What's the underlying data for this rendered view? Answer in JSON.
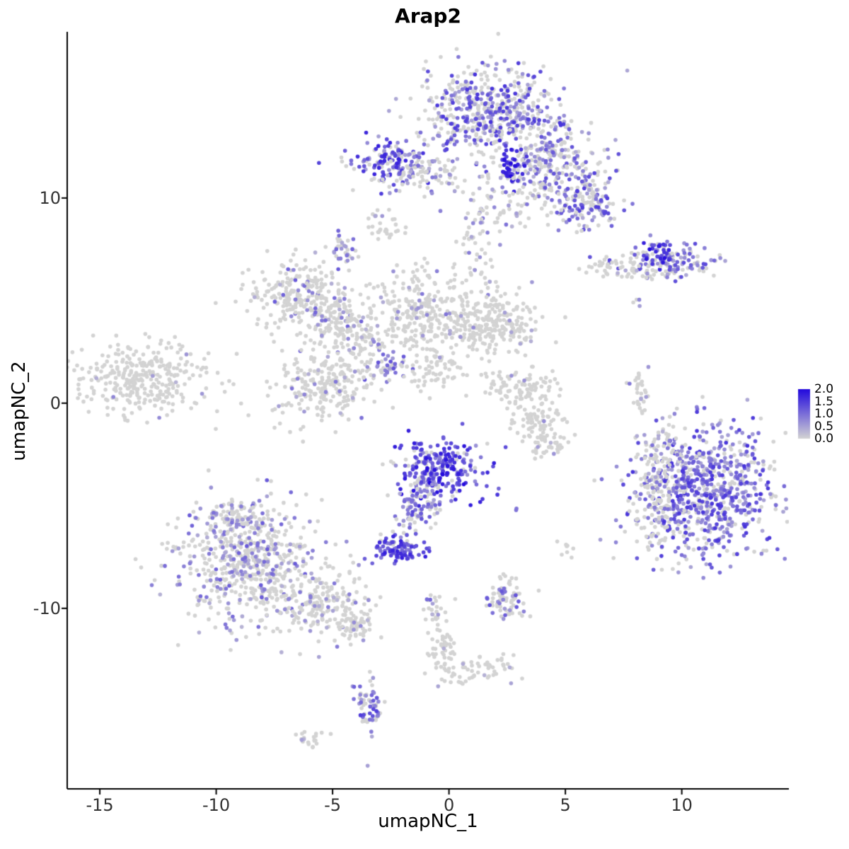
{
  "chart_data": {
    "type": "scatter",
    "title": "Arap2",
    "xlabel": "umapNC_1",
    "ylabel": "umapNC_2",
    "xlim": [
      -16.4,
      14.6
    ],
    "ylim": [
      -18.8,
      18.1
    ],
    "x_ticks": [
      {
        "value": -15,
        "label": "-15"
      },
      {
        "value": -10,
        "label": "-10"
      },
      {
        "value": -5,
        "label": "-5"
      },
      {
        "value": 0,
        "label": "0"
      },
      {
        "value": 5,
        "label": "5"
      },
      {
        "value": 10,
        "label": "10"
      }
    ],
    "y_ticks": [
      {
        "value": 10,
        "label": "10"
      },
      {
        "value": 0,
        "label": "0"
      },
      {
        "value": -10,
        "label": "-10"
      }
    ],
    "legend": {
      "labels": [
        "2.0",
        "1.5",
        "1.0",
        "0.5",
        "0.0"
      ],
      "max_value": 2.0,
      "low_color": "#D3D3D3",
      "high_color": "#2209DD"
    },
    "point_radius": 2.8,
    "seed": 42,
    "grid": false,
    "colors": {
      "background": "#FFFFFF",
      "axis": "#000000",
      "tick_text": "#333333",
      "grey_point": "#D3D3D3",
      "high_point": "#2209DD"
    },
    "clusters": [
      {
        "name": "top-main",
        "x": 1.8,
        "y": 14.2,
        "sx": 1.5,
        "sy": 1.1,
        "n": 520,
        "frac": 0.5,
        "imin": 0.4,
        "imax": 1.6
      },
      {
        "name": "top-arm",
        "x": 4.3,
        "y": 11.9,
        "sx": 1.3,
        "sy": 0.9,
        "n": 230,
        "frac": 0.45,
        "imin": 0.3,
        "imax": 1.3
      },
      {
        "name": "top-right-blob",
        "x": 5.9,
        "y": 9.7,
        "sx": 0.75,
        "sy": 0.65,
        "n": 150,
        "frac": 0.55,
        "imin": 0.4,
        "imax": 1.5
      },
      {
        "name": "top-left-sub",
        "x": -2.6,
        "y": 11.7,
        "sx": 0.85,
        "sy": 0.6,
        "n": 150,
        "frac": 0.7,
        "imin": 0.5,
        "imax": 1.8
      },
      {
        "name": "top-deep-blue",
        "x": 2.7,
        "y": 11.6,
        "sx": 0.25,
        "sy": 0.45,
        "n": 45,
        "frac": 0.95,
        "imin": 1.4,
        "imax": 2.0
      },
      {
        "name": "top-bridge-left",
        "x": -0.9,
        "y": 11.1,
        "sx": 0.8,
        "sy": 0.5,
        "n": 70,
        "frac": 0.35,
        "imin": 0.3,
        "imax": 1.0
      },
      {
        "name": "top-under-sparse",
        "x": 3.2,
        "y": 10.1,
        "sx": 1.2,
        "sy": 0.8,
        "n": 90,
        "frac": 0.3,
        "imin": 0.3,
        "imax": 1.0
      },
      {
        "name": "bridge-top",
        "x": 1.3,
        "y": 7.3,
        "sx": 0.5,
        "sy": 1.5,
        "n": 70,
        "frac": 0.15,
        "imin": 0.3,
        "imax": 0.9
      },
      {
        "name": "right-upper",
        "x": 9.4,
        "y": 6.9,
        "sx": 1.1,
        "sy": 0.45,
        "n": 140,
        "frac": 0.5,
        "imin": 0.4,
        "imax": 1.4
      },
      {
        "name": "right-upper-blue",
        "x": 9.0,
        "y": 7.3,
        "sx": 0.3,
        "sy": 0.3,
        "n": 30,
        "frac": 0.9,
        "imin": 1.2,
        "imax": 2.0
      },
      {
        "name": "right-upper-tail",
        "x": 7.3,
        "y": 6.6,
        "sx": 0.8,
        "sy": 0.3,
        "n": 45,
        "frac": 0.1,
        "imin": 0.3,
        "imax": 0.8
      },
      {
        "name": "right-upper-dot",
        "x": 8.1,
        "y": 4.9,
        "sx": 0.15,
        "sy": 0.15,
        "n": 4,
        "frac": 0.5,
        "imin": 0.5,
        "imax": 1.0
      },
      {
        "name": "web-northwest",
        "x": -6.6,
        "y": 5.3,
        "sx": 1.1,
        "sy": 0.85,
        "n": 230,
        "frac": 0.1,
        "imin": 0.3,
        "imax": 1.2
      },
      {
        "name": "web-northwest-2",
        "x": -4.9,
        "y": 4.2,
        "sx": 0.7,
        "sy": 0.7,
        "n": 120,
        "frac": 0.15,
        "imin": 0.3,
        "imax": 1.2
      },
      {
        "name": "web-top-spur",
        "x": -4.5,
        "y": 7.4,
        "sx": 0.3,
        "sy": 0.4,
        "n": 35,
        "frac": 0.5,
        "imin": 0.4,
        "imax": 1.2
      },
      {
        "name": "web-top-spur-2",
        "x": -2.8,
        "y": 8.7,
        "sx": 0.35,
        "sy": 0.5,
        "n": 30,
        "frac": 0.1,
        "imin": 0.3,
        "imax": 0.6
      },
      {
        "name": "web-center",
        "x": -1.3,
        "y": 4.4,
        "sx": 1.0,
        "sy": 1.0,
        "n": 260,
        "frac": 0.07,
        "imin": 0.3,
        "imax": 1.0
      },
      {
        "name": "web-right",
        "x": 1.8,
        "y": 3.9,
        "sx": 1.1,
        "sy": 0.75,
        "n": 240,
        "frac": 0.04,
        "imin": 0.3,
        "imax": 0.8
      },
      {
        "name": "web-lower",
        "x": -5.3,
        "y": 0.9,
        "sx": 1.0,
        "sy": 1.0,
        "n": 230,
        "frac": 0.08,
        "imin": 0.3,
        "imax": 1.0
      },
      {
        "name": "web-streak",
        "x": -2.6,
        "y": 1.9,
        "sx": 0.45,
        "sy": 0.45,
        "n": 40,
        "frac": 0.6,
        "imin": 0.4,
        "imax": 1.3
      },
      {
        "name": "web-bridge",
        "x": -0.5,
        "y": 1.5,
        "sx": 0.8,
        "sy": 0.6,
        "n": 70,
        "frac": 0.05,
        "imin": 0.3,
        "imax": 0.6
      },
      {
        "name": "web-connector",
        "x": -3.8,
        "y": 3.0,
        "sx": 0.6,
        "sy": 0.8,
        "n": 80,
        "frac": 0.1,
        "imin": 0.3,
        "imax": 0.9
      },
      {
        "name": "far-left",
        "x": -13.1,
        "y": 1.2,
        "sx": 1.5,
        "sy": 0.85,
        "n": 330,
        "frac": 0.02,
        "imin": 0.3,
        "imax": 0.9
      },
      {
        "name": "mid-right-tiny",
        "x": 8.2,
        "y": 0.4,
        "sx": 0.2,
        "sy": 0.55,
        "n": 30,
        "frac": 0.12,
        "imin": 0.4,
        "imax": 1.0
      },
      {
        "name": "crescent-top",
        "x": 3.1,
        "y": 0.8,
        "sx": 0.85,
        "sy": 0.45,
        "n": 90,
        "frac": 0.03,
        "imin": 0.3,
        "imax": 0.7
      },
      {
        "name": "crescent-bottom",
        "x": 3.9,
        "y": -0.8,
        "sx": 0.55,
        "sy": 0.6,
        "n": 85,
        "frac": 0.03,
        "imin": 0.3,
        "imax": 0.7
      },
      {
        "name": "crescent-tail",
        "x": 4.3,
        "y": -2.2,
        "sx": 0.4,
        "sy": 0.5,
        "n": 35,
        "frac": 0.05,
        "imin": 0.3,
        "imax": 0.7
      },
      {
        "name": "center-purple",
        "x": -0.4,
        "y": -3.2,
        "sx": 0.95,
        "sy": 0.75,
        "n": 260,
        "frac": 0.8,
        "imin": 0.6,
        "imax": 2.0
      },
      {
        "name": "center-purple-tail",
        "x": -1.3,
        "y": -4.9,
        "sx": 0.5,
        "sy": 0.6,
        "n": 70,
        "frac": 0.6,
        "imin": 0.4,
        "imax": 1.5
      },
      {
        "name": "purple-trail",
        "x": -1.8,
        "y": -6.0,
        "sx": 0.25,
        "sy": 0.5,
        "n": 25,
        "frac": 0.6,
        "imin": 0.4,
        "imax": 1.4
      },
      {
        "name": "small-dense-purple",
        "x": -2.2,
        "y": -7.1,
        "sx": 0.5,
        "sy": 0.3,
        "n": 90,
        "frac": 0.85,
        "imin": 0.7,
        "imax": 1.8
      },
      {
        "name": "purple-dot-east",
        "x": -0.9,
        "y": -7.2,
        "sx": 0.1,
        "sy": 0.1,
        "n": 3,
        "frac": 1.0,
        "imin": 1.0,
        "imax": 1.5
      },
      {
        "name": "right-big",
        "x": 11.0,
        "y": -4.4,
        "sx": 1.5,
        "sy": 1.6,
        "n": 750,
        "frac": 0.72,
        "imin": 0.4,
        "imax": 1.6
      },
      {
        "name": "right-big-fringe",
        "x": 8.9,
        "y": -4.6,
        "sx": 0.5,
        "sy": 1.3,
        "n": 130,
        "frac": 0.25,
        "imin": 0.3,
        "imax": 1.0
      },
      {
        "name": "right-big-top",
        "x": 9.6,
        "y": -2.3,
        "sx": 0.6,
        "sy": 0.4,
        "n": 40,
        "frac": 0.3,
        "imin": 0.3,
        "imax": 1.0
      },
      {
        "name": "bottom-left-main",
        "x": -8.6,
        "y": -7.8,
        "sx": 1.6,
        "sy": 1.5,
        "n": 600,
        "frac": 0.3,
        "imin": 0.3,
        "imax": 1.2
      },
      {
        "name": "bottom-left-arm",
        "x": -5.4,
        "y": -9.9,
        "sx": 1.1,
        "sy": 0.7,
        "n": 180,
        "frac": 0.15,
        "imin": 0.3,
        "imax": 1.0
      },
      {
        "name": "bottom-left-tip",
        "x": -4.0,
        "y": -10.8,
        "sx": 0.4,
        "sy": 0.4,
        "n": 50,
        "frac": 0.12,
        "imin": 0.3,
        "imax": 0.9
      },
      {
        "name": "bottom-left-top-tinge",
        "x": -9.2,
        "y": -5.6,
        "sx": 0.8,
        "sy": 0.5,
        "n": 90,
        "frac": 0.45,
        "imin": 0.3,
        "imax": 1.0
      },
      {
        "name": "trail-1",
        "x": -0.6,
        "y": -10.2,
        "sx": 0.3,
        "sy": 0.4,
        "n": 25,
        "frac": 0.08,
        "imin": 0.3,
        "imax": 0.7
      },
      {
        "name": "trail-2",
        "x": -0.3,
        "y": -12.0,
        "sx": 0.3,
        "sy": 0.6,
        "n": 40,
        "frac": 0.05,
        "imin": 0.3,
        "imax": 0.7
      },
      {
        "name": "trail-3",
        "x": 0.3,
        "y": -13.2,
        "sx": 0.5,
        "sy": 0.3,
        "n": 30,
        "frac": 0.05,
        "imin": 0.3,
        "imax": 0.7
      },
      {
        "name": "trail-4",
        "x": 1.9,
        "y": -12.9,
        "sx": 0.5,
        "sy": 0.35,
        "n": 35,
        "frac": 0.08,
        "imin": 0.3,
        "imax": 0.7
      },
      {
        "name": "trail-purple-dot",
        "x": -0.9,
        "y": -9.6,
        "sx": 0.1,
        "sy": 0.1,
        "n": 2,
        "frac": 1.0,
        "imin": 0.8,
        "imax": 1.2
      },
      {
        "name": "bottom-small",
        "x": 2.4,
        "y": -9.6,
        "sx": 0.45,
        "sy": 0.5,
        "n": 75,
        "frac": 0.3,
        "imin": 0.4,
        "imax": 1.3
      },
      {
        "name": "bottom-purple",
        "x": -3.5,
        "y": -14.8,
        "sx": 0.3,
        "sy": 0.75,
        "n": 65,
        "frac": 0.6,
        "imin": 0.4,
        "imax": 1.5
      },
      {
        "name": "bottom-tiny",
        "x": -5.9,
        "y": -16.4,
        "sx": 0.35,
        "sy": 0.2,
        "n": 22,
        "frac": 0.05,
        "imin": 0.3,
        "imax": 0.6
      },
      {
        "name": "misc-pair",
        "x": 5.1,
        "y": -7.3,
        "sx": 0.3,
        "sy": 0.25,
        "n": 8,
        "frac": 0.1,
        "imin": 0.3,
        "imax": 0.8
      },
      {
        "name": "misc-purple-single",
        "x": 3.0,
        "y": -5.2,
        "sx": 0.1,
        "sy": 0.1,
        "n": 2,
        "frac": 1.0,
        "imin": 0.8,
        "imax": 1.3
      }
    ]
  }
}
